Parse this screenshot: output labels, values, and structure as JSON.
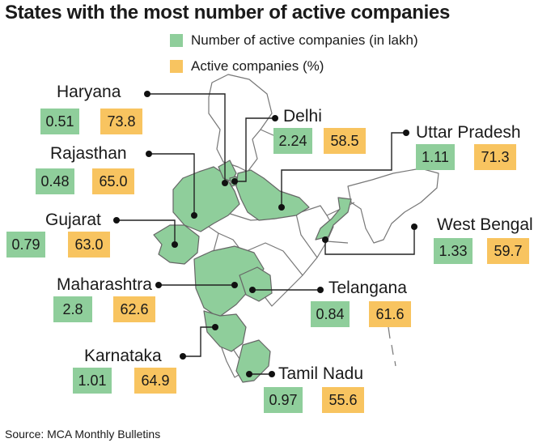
{
  "title": "States with the most number of active companies",
  "legend": {
    "items": [
      {
        "label": "Number of active companies (in lakh)",
        "color": "#8fce9b"
      },
      {
        "label": "Active companies (%)",
        "color": "#f8c460"
      }
    ]
  },
  "colors": {
    "highlight": "#8fce9b",
    "land": "#ffffff",
    "border": "#777777",
    "leader": "#222222"
  },
  "states": [
    {
      "id": "haryana",
      "name": "Haryana",
      "count": "0.51",
      "percent": "73.8"
    },
    {
      "id": "delhi",
      "name": "Delhi",
      "count": "2.24",
      "percent": "58.5"
    },
    {
      "id": "uttar-pradesh",
      "name": "Uttar Pradesh",
      "count": "1.11",
      "percent": "71.3"
    },
    {
      "id": "rajasthan",
      "name": "Rajasthan",
      "count": "0.48",
      "percent": "65.0"
    },
    {
      "id": "gujarat",
      "name": "Gujarat",
      "count": "0.79",
      "percent": "63.0"
    },
    {
      "id": "west-bengal",
      "name": "West Bengal",
      "count": "1.33",
      "percent": "59.7"
    },
    {
      "id": "maharashtra",
      "name": "Maharashtra",
      "count": "2.8",
      "percent": "62.6"
    },
    {
      "id": "telangana",
      "name": "Telangana",
      "count": "0.84",
      "percent": "61.6"
    },
    {
      "id": "karnataka",
      "name": "Karnataka",
      "count": "1.01",
      "percent": "64.9"
    },
    {
      "id": "tamil-nadu",
      "name": "Tamil Nadu",
      "count": "0.97",
      "percent": "55.6"
    }
  ],
  "source": "Source: MCA Monthly Bulletins"
}
